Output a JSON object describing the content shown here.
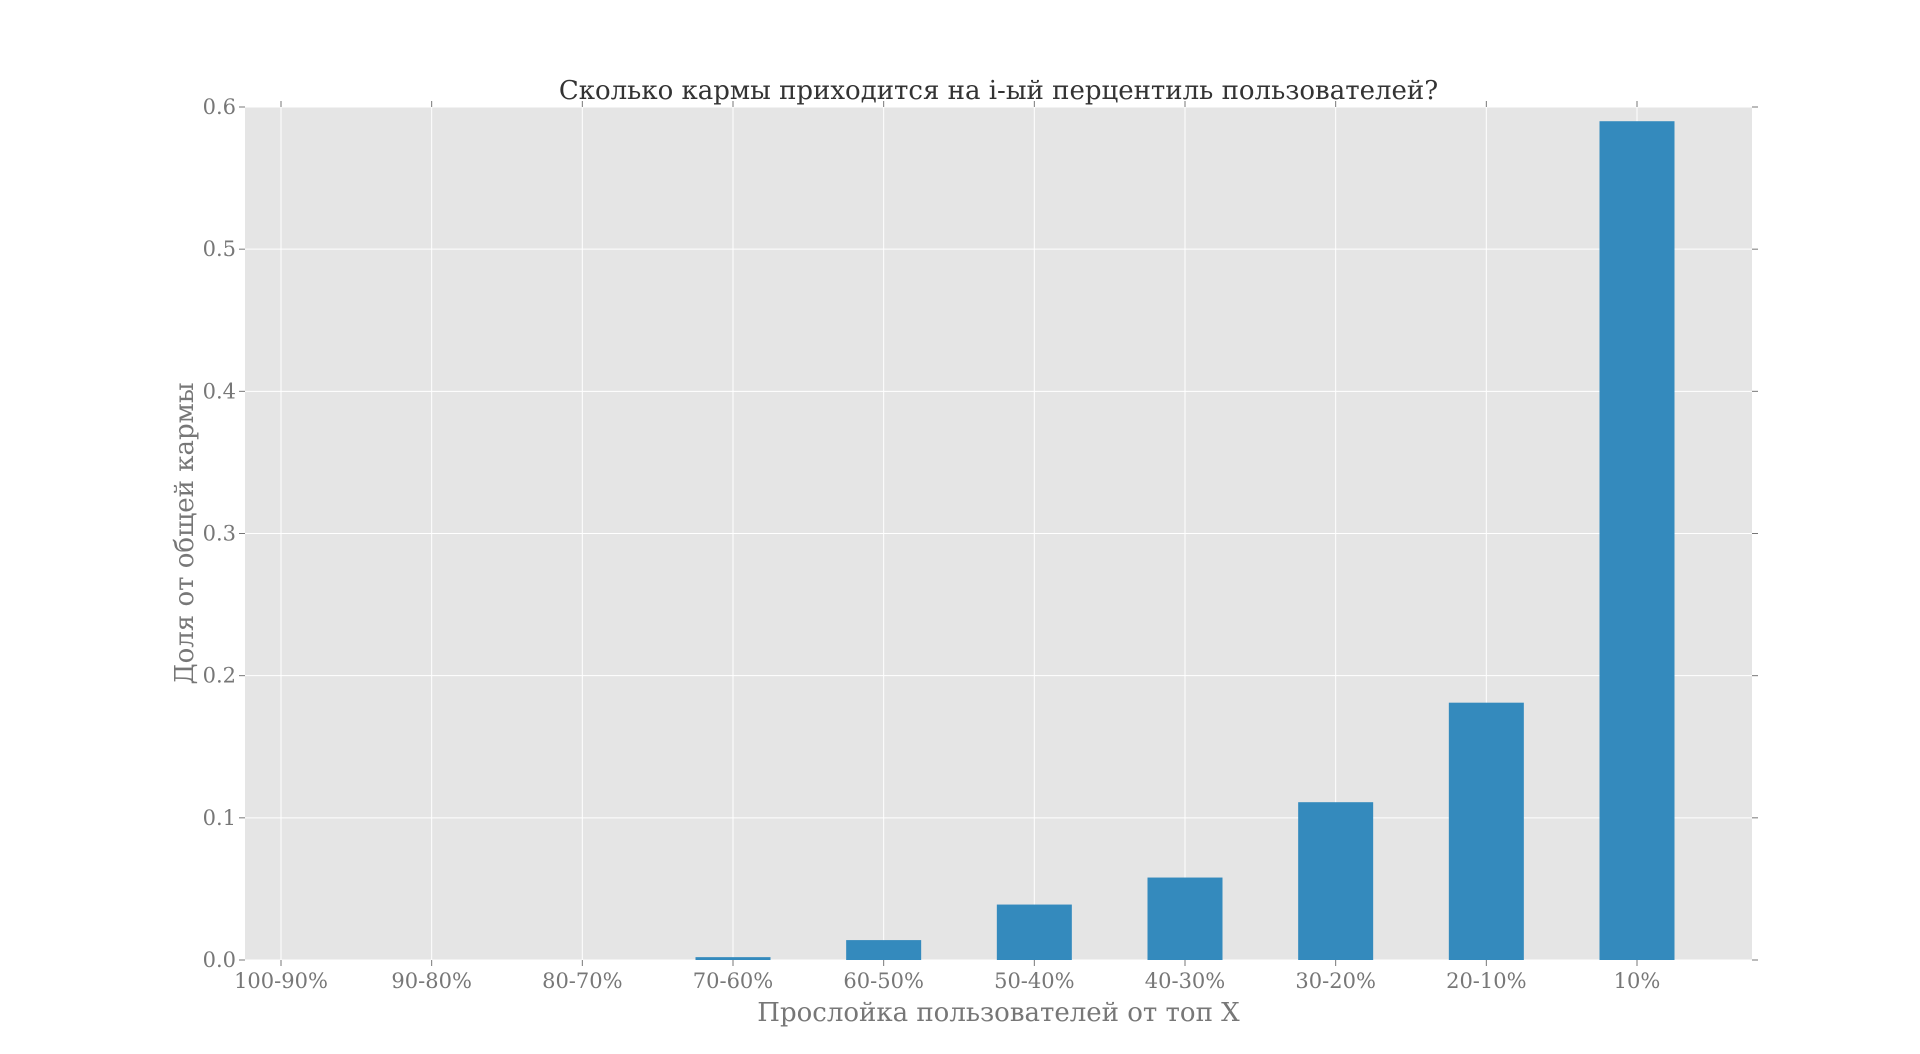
{
  "chart_data": {
    "type": "bar",
    "title": "Сколько кармы приходится на i-ый перцентиль пользователей?",
    "xlabel": "Прослойка пользователей от топ X",
    "ylabel": "Доля от общей кармы",
    "categories": [
      "100-90%",
      "90-80%",
      "80-70%",
      "70-60%",
      "60-50%",
      "50-40%",
      "40-30%",
      "30-20%",
      "20-10%",
      "10%"
    ],
    "values": [
      0.0,
      0.0,
      0.0,
      0.002,
      0.014,
      0.039,
      0.058,
      0.111,
      0.181,
      0.59
    ],
    "ylim": [
      0,
      0.6
    ],
    "yticks": [
      0.0,
      0.1,
      0.2,
      0.3,
      0.4,
      0.5,
      0.6
    ],
    "ytick_labels": [
      "0.0",
      "0.1",
      "0.2",
      "0.3",
      "0.4",
      "0.5",
      "0.6"
    ],
    "grid": true,
    "bar_color": "#348abd",
    "background_color": "#e5e5e5"
  }
}
